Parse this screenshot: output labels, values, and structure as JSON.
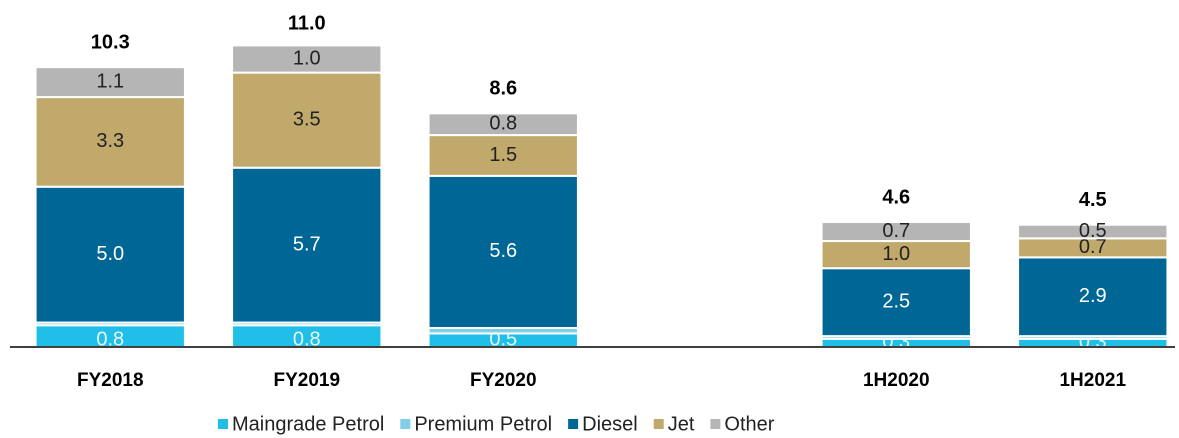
{
  "chart_data": {
    "type": "stacked_bar",
    "categories": [
      "FY2018",
      "FY2019",
      "FY2020",
      null,
      "1H2020",
      "1H2021"
    ],
    "series": [
      {
        "name": "Maingrade Petrol",
        "color": "#1fbfe8",
        "values": [
          0.8,
          0.8,
          0.5,
          null,
          0.3,
          0.3
        ],
        "value_labels": [
          "0.8",
          "0.8",
          "0.5",
          null,
          "0.3",
          "0.3"
        ]
      },
      {
        "name": "Premium Petrol",
        "color": "#7fcfe6",
        "values": [
          0.1,
          0.1,
          0.2,
          null,
          0.1,
          0.1
        ],
        "value_labels": [
          "0.1",
          "0.1",
          "0.2",
          null,
          "0.1",
          "0.1"
        ]
      },
      {
        "name": "Diesel",
        "color": "#006696",
        "values": [
          5.0,
          5.7,
          5.6,
          null,
          2.5,
          2.9
        ],
        "value_labels": [
          "5.0",
          "5.7",
          "5.6",
          null,
          "2.5",
          "2.9"
        ]
      },
      {
        "name": "Jet",
        "color": "#c1a96b",
        "values": [
          3.3,
          3.5,
          1.5,
          null,
          1.0,
          0.7
        ],
        "value_labels": [
          "3.3",
          "3.5",
          "1.5",
          null,
          "1.0",
          "0.7"
        ]
      },
      {
        "name": "Other",
        "color": "#b5b5b5",
        "values": [
          1.1,
          1.0,
          0.8,
          null,
          0.7,
          0.5
        ],
        "value_labels": [
          "1.1",
          "1.0",
          "0.8",
          null,
          "0.7",
          "0.5"
        ]
      }
    ],
    "totals": [
      10.3,
      11.0,
      8.6,
      null,
      4.6,
      4.5
    ],
    "totals_labels": [
      "10.3",
      "11.0",
      "8.6",
      null,
      "4.6",
      "4.5"
    ],
    "ylim": [
      0,
      12
    ]
  }
}
